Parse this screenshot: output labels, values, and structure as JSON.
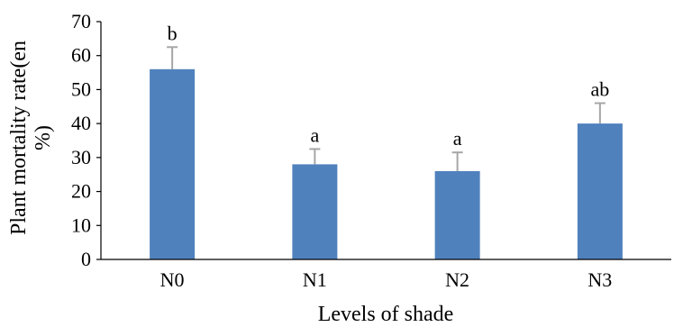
{
  "chart_data": {
    "type": "bar",
    "categories": [
      "N0",
      "N1",
      "N2",
      "N3"
    ],
    "values": [
      56,
      28,
      26,
      40
    ],
    "error_bars": [
      6.5,
      4.5,
      5.5,
      6.0
    ],
    "annotations": [
      "b",
      "a",
      "a",
      "ab"
    ],
    "ylim": [
      0,
      70
    ],
    "yticks": [
      0,
      10,
      20,
      30,
      40,
      50,
      60,
      70
    ],
    "xlabel": "Levels of shade",
    "ylabel_lines": [
      "Plant mortality rate(en",
      "%)"
    ],
    "grid": false,
    "legend": "none",
    "bar_color": "#4f81bd",
    "error_color": "#a6a6a6"
  }
}
